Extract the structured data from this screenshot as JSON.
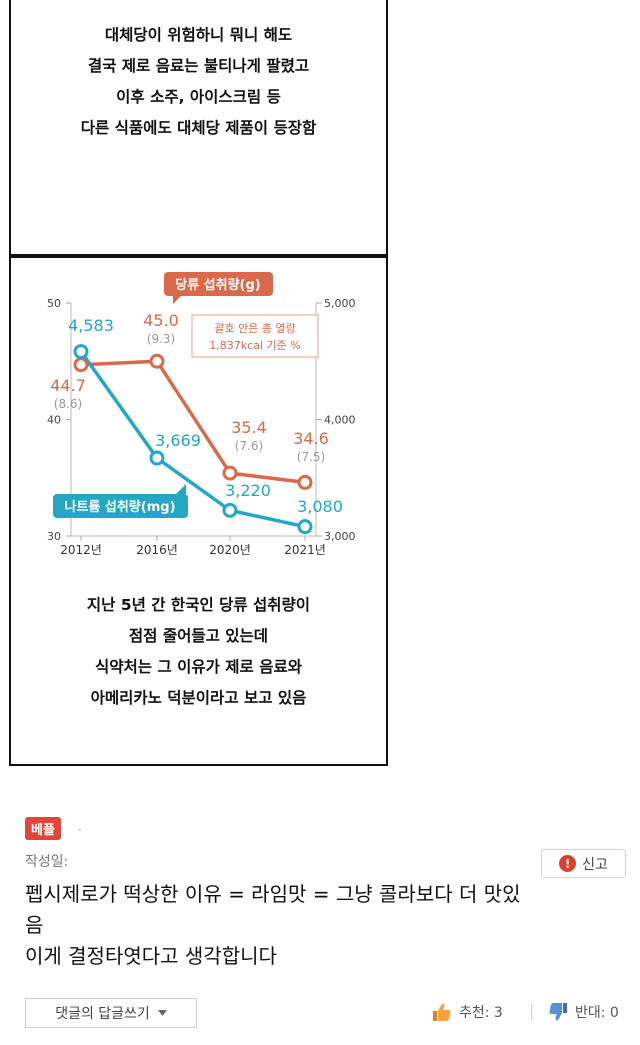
{
  "top_caption": [
    "대체당이 위험하니 뭐니 해도",
    "결국 제로 음료는 불티나게 팔렸고",
    "이후 소주, 아이스크림 등",
    "다른 식품에도 대체당 제품이 등장함"
  ],
  "bottom_caption": [
    "지난 5년 간 한국인 당류 섭취량이",
    "점점 줄어들고 있는데",
    "식약처는 그 이유가 제로 음료와",
    "아메리카노 덕분이라고 보고 있음"
  ],
  "chart_data": {
    "type": "line",
    "categories": [
      "2012년",
      "2016년",
      "2020년",
      "2021년"
    ],
    "left_axis": {
      "ticks": [
        "50",
        "40",
        "30"
      ],
      "ylim": [
        30,
        50
      ]
    },
    "right_axis": {
      "ticks": [
        "5,000",
        "4,000",
        "3,000"
      ],
      "ylim": [
        3000,
        5000
      ]
    },
    "series": [
      {
        "name": "당류 섭취량(g)",
        "axis": "left",
        "color": "#d9694a",
        "values": [
          44.7,
          45.0,
          35.4,
          34.6
        ],
        "labels": [
          "44.7",
          "45.0",
          "35.4",
          "34.6"
        ],
        "sublabels": [
          "(8.6)",
          "(9.3)",
          "(7.6)",
          "(7.5)"
        ]
      },
      {
        "name": "나트륨 섭취량(mg)",
        "axis": "right",
        "color": "#22a7c7",
        "values": [
          4583,
          3669,
          3220,
          3080
        ],
        "labels": [
          "4,583",
          "3,669",
          "3,220",
          "3,080"
        ]
      }
    ],
    "annotation": [
      "괄호 안은 총 열량",
      "1,837kcal 기준 %"
    ],
    "grid": false
  },
  "comment": {
    "badge": "베플",
    "date_label": "작성일:",
    "report_label": "신고",
    "text_lines": [
      "펩시제로가 떡상한 이유 = 라임맛 = 그냥 콜라보다 더 맛있",
      "음",
      "이게 결정타엿다고 생각합니다"
    ],
    "reply_label": "댓글의 답글쓰기",
    "upvote_label": "추천: 3",
    "downvote_label": "반대: 0"
  },
  "colors": {
    "sugar": "#d9694a",
    "sodium": "#22a7c7",
    "badge": "#e0453a"
  },
  "icons": [
    "exclamation-icon",
    "thumbs-up-icon",
    "thumbs-down-icon",
    "dropdown-arrow-icon"
  ]
}
